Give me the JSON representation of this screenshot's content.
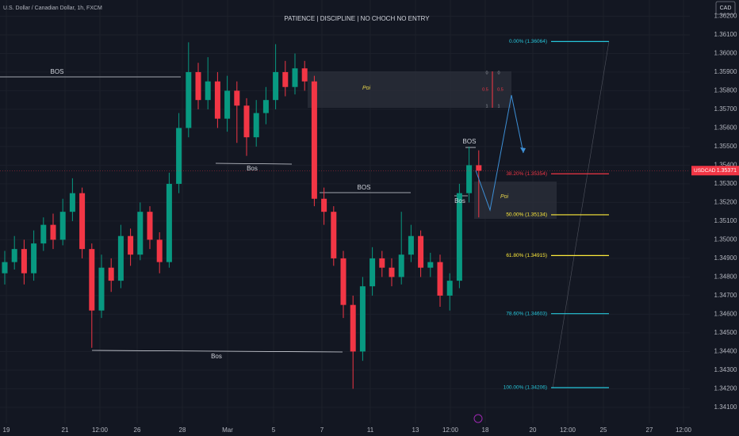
{
  "chart_data": {
    "type": "candlestick",
    "header": "U.S. Dollar / Canadian Dollar, 1h, FXCM",
    "title": "PATIENCE  |  DISCIPLINE  |  NO CHOCH NO ENTRY",
    "currency_button": "CAD",
    "symbol": "USDCAD",
    "last_price": {
      "value": 1.35371,
      "label": "1.35371"
    },
    "up_color": "#089981",
    "down_color": "#f23645",
    "ylim": [
      1.3404,
      1.36287
    ],
    "yticks": [
      {
        "value": 1.362,
        "label": "1.36200"
      },
      {
        "value": 1.361,
        "label": "1.36100"
      },
      {
        "value": 1.36,
        "label": "1.36000"
      },
      {
        "value": 1.359,
        "label": "1.35900"
      },
      {
        "value": 1.358,
        "label": "1.35800"
      },
      {
        "value": 1.357,
        "label": "1.35700"
      },
      {
        "value": 1.356,
        "label": "1.35600"
      },
      {
        "value": 1.355,
        "label": "1.35500"
      },
      {
        "value": 1.354,
        "label": "1.35400"
      },
      {
        "value": 1.353,
        "label": "1.35300"
      },
      {
        "value": 1.352,
        "label": "1.35200"
      },
      {
        "value": 1.351,
        "label": "1.35100"
      },
      {
        "value": 1.35,
        "label": "1.35000"
      },
      {
        "value": 1.349,
        "label": "1.34900"
      },
      {
        "value": 1.348,
        "label": "1.34800"
      },
      {
        "value": 1.347,
        "label": "1.34700"
      },
      {
        "value": 1.346,
        "label": "1.34600"
      },
      {
        "value": 1.345,
        "label": "1.34500"
      },
      {
        "value": 1.344,
        "label": "1.34400"
      },
      {
        "value": 1.343,
        "label": "1.34300"
      },
      {
        "value": 1.342,
        "label": "1.34200"
      },
      {
        "value": 1.341,
        "label": "1.34100"
      }
    ],
    "x_labels": [
      "19",
      "21",
      "12:00",
      "26",
      "28",
      "Mar",
      "5",
      "7",
      "11",
      "13",
      "12:00",
      "18",
      "20",
      "12:00",
      "25",
      "27",
      "12:00"
    ],
    "open": [
      1.3482,
      1.3488,
      1.3495,
      1.3482,
      1.3498,
      1.3508,
      1.35,
      1.3515,
      1.3525,
      1.3495,
      1.3462,
      1.3485,
      1.3478,
      1.3502,
      1.3492,
      1.3515,
      1.35,
      1.3488,
      1.353,
      1.356,
      1.359,
      1.3575,
      1.3585,
      1.3565,
      1.358,
      1.3572,
      1.3555,
      1.3568,
      1.3575,
      1.359,
      1.3582,
      1.3592,
      1.3585,
      1.3522,
      1.3515,
      1.349,
      1.3465,
      1.344,
      1.3475,
      1.349,
      1.3485,
      1.348,
      1.3492,
      1.3502,
      1.3485,
      1.3488,
      1.347,
      1.3478,
      1.3525,
      1.354
    ],
    "high": [
      1.3494,
      1.3502,
      1.35,
      1.3505,
      1.3512,
      1.3514,
      1.3522,
      1.3533,
      1.3528,
      1.3498,
      1.3492,
      1.349,
      1.3508,
      1.3506,
      1.352,
      1.3518,
      1.3504,
      1.3536,
      1.3568,
      1.3606,
      1.3595,
      1.3598,
      1.359,
      1.3588,
      1.3585,
      1.3576,
      1.3575,
      1.3582,
      1.3605,
      1.3596,
      1.36,
      1.3596,
      1.3588,
      1.3528,
      1.3518,
      1.3494,
      1.347,
      1.348,
      1.3496,
      1.3494,
      1.349,
      1.3515,
      1.3508,
      1.3505,
      1.3493,
      1.3492,
      1.3482,
      1.353,
      1.355,
      1.3548
    ],
    "low": [
      1.3476,
      1.3484,
      1.3476,
      1.3478,
      1.3494,
      1.3495,
      1.3497,
      1.351,
      1.349,
      1.3442,
      1.3458,
      1.3472,
      1.3474,
      1.3486,
      1.3489,
      1.3495,
      1.3482,
      1.3485,
      1.3525,
      1.3555,
      1.357,
      1.357,
      1.356,
      1.3558,
      1.3552,
      1.3545,
      1.355,
      1.3562,
      1.357,
      1.3577,
      1.3578,
      1.358,
      1.3518,
      1.3508,
      1.3486,
      1.3458,
      1.342,
      1.3435,
      1.347,
      1.348,
      1.3475,
      1.3476,
      1.3488,
      1.348,
      1.348,
      1.3464,
      1.3462,
      1.3474,
      1.352,
      1.3512
    ],
    "close": [
      1.3488,
      1.3495,
      1.3482,
      1.3498,
      1.3508,
      1.35,
      1.3515,
      1.3525,
      1.3495,
      1.3462,
      1.3485,
      1.3478,
      1.3502,
      1.3492,
      1.3515,
      1.35,
      1.3488,
      1.353,
      1.356,
      1.359,
      1.3575,
      1.3585,
      1.3565,
      1.358,
      1.3572,
      1.3555,
      1.3568,
      1.3575,
      1.359,
      1.3582,
      1.3592,
      1.3585,
      1.3522,
      1.3515,
      1.349,
      1.3465,
      1.344,
      1.3475,
      1.349,
      1.3485,
      1.348,
      1.3492,
      1.3502,
      1.3485,
      1.3488,
      1.347,
      1.3478,
      1.3525,
      1.354,
      1.3537
    ],
    "annotations": [
      "BOS",
      "Bos",
      "BOS",
      "Bos",
      "BOS",
      "Bos",
      "Poi",
      "Poi"
    ],
    "mini_fib_labels": [
      "0",
      "0",
      "0.5",
      "0.5",
      "1",
      "1"
    ],
    "fib_levels": [
      {
        "label": "0.00% (1.36064)",
        "value": 1.36064,
        "color": "#26c6da"
      },
      {
        "label": "38.20% (1.35354)",
        "value": 1.35354,
        "color": "#f23645"
      },
      {
        "label": "50.00% (1.35134)",
        "value": 1.35134,
        "color": "#ffeb3b"
      },
      {
        "label": "61.80% (1.34915)",
        "value": 1.34915,
        "color": "#ffeb3b"
      },
      {
        "label": "78.60% (1.34603)",
        "value": 1.34603,
        "color": "#26c6da"
      },
      {
        "label": "100.00% (1.34206)",
        "value": 1.34206,
        "color": "#26c6da"
      }
    ]
  }
}
